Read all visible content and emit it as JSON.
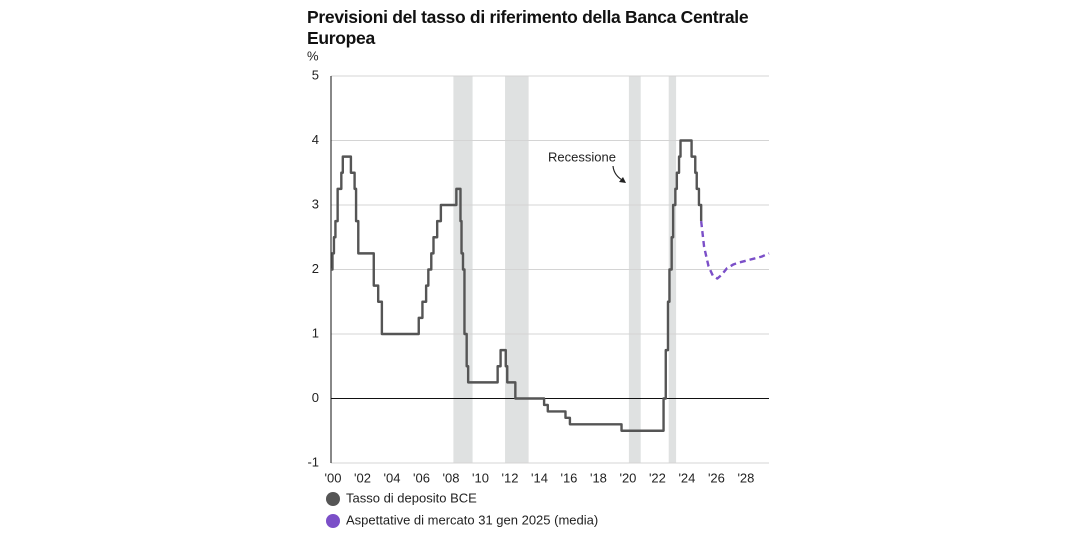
{
  "chart_data": {
    "type": "line",
    "title": "Previsioni del tasso di riferimento della Banca Centrale Europea",
    "y_label": "%",
    "annotation": "Recessione",
    "xlim": [
      2000,
      2029.7
    ],
    "ylim": [
      -1,
      5
    ],
    "xticks": [
      {
        "value": 2000,
        "label": "'00"
      },
      {
        "value": 2002,
        "label": "'02"
      },
      {
        "value": 2004,
        "label": "'04"
      },
      {
        "value": 2006,
        "label": "'06"
      },
      {
        "value": 2008,
        "label": "'08"
      },
      {
        "value": 2010,
        "label": "'10"
      },
      {
        "value": 2012,
        "label": "'12"
      },
      {
        "value": 2014,
        "label": "'14"
      },
      {
        "value": 2016,
        "label": "'16"
      },
      {
        "value": 2018,
        "label": "'18"
      },
      {
        "value": 2020,
        "label": "'20"
      },
      {
        "value": 2022,
        "label": "'22"
      },
      {
        "value": 2024,
        "label": "'24"
      },
      {
        "value": 2026,
        "label": "'26"
      },
      {
        "value": 2028,
        "label": "'28"
      }
    ],
    "yticks": [
      -1,
      0,
      1,
      2,
      3,
      4,
      5
    ],
    "grid": true,
    "recessions": {
      "color": "#dfe1e1",
      "start": [
        2008.3,
        2011.8,
        2020.2,
        2022.9
      ],
      "end": [
        2009.6,
        2013.4,
        2021.0,
        2023.4
      ]
    },
    "series": [
      {
        "name": "Tasso di deposito BCE",
        "color": "#555555",
        "step": true,
        "dashed": false,
        "x": [
          2000.0,
          2000.1,
          2000.2,
          2000.3,
          2000.45,
          2000.7,
          2000.8,
          2001.35,
          2001.6,
          2001.7,
          2001.85,
          2002.9,
          2003.2,
          2003.45,
          2005.95,
          2006.2,
          2006.45,
          2006.6,
          2006.8,
          2006.95,
          2007.2,
          2007.45,
          2008.5,
          2008.78,
          2008.85,
          2008.95,
          2009.05,
          2009.2,
          2009.3,
          2011.3,
          2011.5,
          2011.85,
          2011.95,
          2012.5,
          2014.45,
          2014.7,
          2015.9,
          2016.2,
          2019.7,
          2022.55,
          2022.7,
          2022.85,
          2022.95,
          2023.1,
          2023.2,
          2023.35,
          2023.45,
          2023.6,
          2023.7,
          2024.45,
          2024.7,
          2024.8,
          2024.95,
          2025.1
        ],
        "values": [
          2.0,
          2.25,
          2.5,
          2.75,
          3.25,
          3.5,
          3.75,
          3.5,
          3.25,
          2.75,
          2.25,
          1.75,
          1.5,
          1.0,
          1.25,
          1.5,
          1.75,
          2.0,
          2.25,
          2.5,
          2.75,
          3.0,
          3.25,
          2.75,
          2.25,
          2.0,
          1.0,
          0.5,
          0.25,
          0.5,
          0.75,
          0.5,
          0.25,
          0.0,
          -0.1,
          -0.2,
          -0.3,
          -0.4,
          -0.5,
          0.0,
          0.75,
          1.5,
          2.0,
          2.5,
          3.0,
          3.25,
          3.5,
          3.75,
          4.0,
          3.75,
          3.5,
          3.25,
          3.0,
          2.75
        ]
      },
      {
        "name": "Aspettative di mercato 31 gen 2025 (media)",
        "color": "#7b4fc8",
        "step": false,
        "dashed": true,
        "x": [
          2025.1,
          2025.3,
          2025.6,
          2025.9,
          2026.2,
          2026.5,
          2026.85,
          2027.3,
          2027.7,
          2028.2,
          2028.7,
          2029.2,
          2029.7
        ],
        "values": [
          2.75,
          2.35,
          2.05,
          1.9,
          1.86,
          1.92,
          2.02,
          2.08,
          2.11,
          2.14,
          2.17,
          2.2,
          2.25
        ]
      }
    ]
  }
}
